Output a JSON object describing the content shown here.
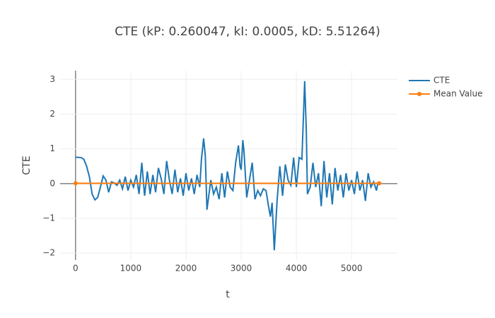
{
  "chart_data": {
    "type": "line",
    "title": "CTE (kP: 0.260047, kI: 0.0005, kD: 5.51264)",
    "x_label": "t",
    "y_label": "CTE",
    "xlim": [
      -280,
      5830
    ],
    "ylim": [
      -2.2,
      3.25
    ],
    "xticks": [
      0,
      1000,
      2000,
      3000,
      4000,
      5000
    ],
    "yticks": [
      {
        "value": -2,
        "label": "−2"
      },
      {
        "value": -1,
        "label": "−1"
      },
      0,
      1,
      2,
      3
    ],
    "grid": true,
    "legend": "top-right",
    "series": [
      {
        "name": "CTE",
        "color": "#1f77b4",
        "markers": false,
        "x": [
          0,
          100,
          150,
          200,
          250,
          300,
          350,
          400,
          450,
          500,
          550,
          600,
          650,
          700,
          750,
          800,
          850,
          900,
          950,
          1000,
          1050,
          1100,
          1150,
          1200,
          1250,
          1300,
          1350,
          1400,
          1450,
          1500,
          1550,
          1600,
          1650,
          1700,
          1750,
          1800,
          1850,
          1900,
          1950,
          2000,
          2050,
          2100,
          2150,
          2200,
          2250,
          2280,
          2320,
          2350,
          2380,
          2450,
          2500,
          2550,
          2600,
          2650,
          2700,
          2750,
          2800,
          2850,
          2900,
          2950,
          2980,
          3000,
          3030,
          3050,
          3100,
          3150,
          3200,
          3250,
          3300,
          3350,
          3400,
          3450,
          3500,
          3530,
          3560,
          3600,
          3650,
          3700,
          3750,
          3800,
          3850,
          3900,
          3950,
          4000,
          4050,
          4100,
          4150,
          4180,
          4200,
          4250,
          4300,
          4350,
          4400,
          4450,
          4500,
          4550,
          4600,
          4650,
          4700,
          4750,
          4800,
          4850,
          4900,
          4950,
          5000,
          5050,
          5100,
          5150,
          5200,
          5250,
          5300,
          5350,
          5400,
          5450,
          5480
        ],
        "values": [
          0.76,
          0.75,
          0.7,
          0.5,
          0.2,
          -0.3,
          -0.47,
          -0.4,
          -0.1,
          0.22,
          0.1,
          -0.25,
          0.05,
          0.02,
          -0.05,
          0.1,
          -0.15,
          0.2,
          -0.2,
          0.1,
          -0.1,
          0.25,
          -0.3,
          0.6,
          -0.35,
          0.35,
          -0.3,
          0.25,
          -0.25,
          0.45,
          0.15,
          -0.3,
          0.65,
          0.1,
          -0.3,
          0.4,
          -0.25,
          0.15,
          -0.35,
          0.3,
          -0.2,
          0.15,
          -0.3,
          0.25,
          -0.1,
          0.7,
          1.3,
          0.8,
          -0.75,
          0.1,
          -0.3,
          -0.1,
          -0.45,
          0.3,
          -0.4,
          0.35,
          -0.1,
          -0.2,
          0.6,
          1.1,
          0.5,
          0.4,
          1.25,
          0.95,
          -0.4,
          0.1,
          0.6,
          -0.45,
          -0.2,
          -0.35,
          -0.15,
          -0.2,
          -0.7,
          -0.95,
          -0.55,
          -1.92,
          -0.5,
          0.5,
          -0.35,
          0.55,
          0.1,
          -0.05,
          0.75,
          -0.1,
          0.75,
          0.7,
          2.95,
          1.5,
          -0.3,
          -0.1,
          0.6,
          -0.1,
          0.3,
          -0.65,
          0.65,
          -0.4,
          0.3,
          -0.6,
          0.45,
          -0.2,
          0.25,
          -0.4,
          0.3,
          -0.2,
          0.1,
          -0.3,
          0.35,
          -0.2,
          0.1,
          -0.5,
          0.3,
          -0.1,
          0.05,
          -0.2,
          0.05
        ]
      },
      {
        "name": "Mean Value",
        "color": "#ff7f0e",
        "markers": true,
        "x": [
          0,
          5500
        ],
        "values": [
          0.01,
          0.01
        ]
      }
    ]
  }
}
